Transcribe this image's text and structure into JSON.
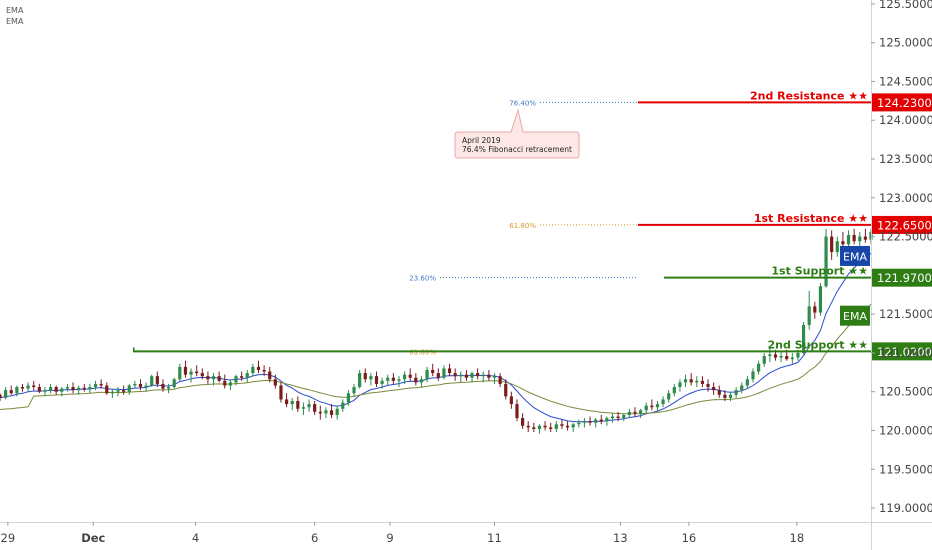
{
  "legend": [
    "EMA",
    "EMA"
  ],
  "colors": {
    "resistance": "#e40000",
    "support": "#2e7d14",
    "ema_badge": "#1646a8",
    "ema_fast": "#2a4ad0",
    "ema_slow": "#7a8a3a",
    "fib_blue": "#3d7bc4",
    "fib_orange": "#d89a2a",
    "bull": "#2e8b4a",
    "bear": "#7a1c1c"
  },
  "annotation": {
    "lines": [
      "April 2019",
      "76.4% Fibonacci retracement"
    ]
  },
  "chart_data": {
    "type": "candlestick",
    "y_axis": {
      "ylim": [
        118.82,
        125.55
      ],
      "ticks": [
        "125.5000",
        "125.0000",
        "124.5000",
        "124.0000",
        "123.5000",
        "123.0000",
        "122.5000",
        "121.5000",
        "121.0000",
        "120.5000",
        "120.0000",
        "119.5000",
        "119.0000"
      ]
    },
    "x_axis": {
      "ticks": [
        {
          "label": "29",
          "t": 0.7
        },
        {
          "label": "Dec",
          "t": 8.3
        },
        {
          "label": "4",
          "t": 17.4
        },
        {
          "label": "6",
          "t": 28.0
        },
        {
          "label": "9",
          "t": 34.7
        },
        {
          "label": "11",
          "t": 44.0
        },
        {
          "label": "13",
          "t": 55.2
        },
        {
          "label": "16",
          "t": 61.3
        },
        {
          "label": "18",
          "t": 70.9
        }
      ]
    },
    "levels": [
      {
        "label": "2nd Resistance ★★",
        "value": "124.2300",
        "price": 124.23,
        "kind": "resistance"
      },
      {
        "label": "1st Resistance ★★",
        "value": "122.6500",
        "price": 122.65,
        "kind": "resistance"
      },
      {
        "label": "1st Support ★★",
        "value": "121.9700",
        "price": 121.97,
        "kind": "support"
      },
      {
        "label": "2nd Support ★★",
        "value": "121.0200",
        "price": 121.02,
        "kind": "support"
      }
    ],
    "fib_levels": [
      {
        "label": "76.40%",
        "price": 124.23,
        "color": "blue"
      },
      {
        "label": "61.80%",
        "price": 122.65,
        "color": "orange"
      },
      {
        "label": "23.60%",
        "price": 121.97,
        "color": "blue"
      },
      {
        "label": "61.80%",
        "price": 121.02,
        "color": "orange"
      }
    ],
    "ema_badges": [
      {
        "label": "EMA",
        "price": 122.25
      },
      {
        "label": "EMA",
        "price": 121.48
      }
    ],
    "support_start_t": 11.9,
    "ohlc": [
      [
        120.46,
        120.48,
        120.38,
        120.42
      ],
      [
        120.42,
        120.56,
        120.4,
        120.52
      ],
      [
        120.52,
        120.58,
        120.46,
        120.48
      ],
      [
        120.48,
        120.58,
        120.44,
        120.56
      ],
      [
        120.56,
        120.6,
        120.5,
        120.54
      ],
      [
        120.54,
        120.62,
        120.5,
        120.58
      ],
      [
        120.58,
        120.64,
        120.52,
        120.56
      ],
      [
        120.56,
        120.6,
        120.48,
        120.5
      ],
      [
        120.5,
        120.56,
        120.44,
        120.52
      ],
      [
        120.52,
        120.6,
        120.48,
        120.56
      ],
      [
        120.56,
        120.58,
        120.46,
        120.5
      ],
      [
        120.5,
        120.56,
        120.44,
        120.54
      ],
      [
        120.54,
        120.6,
        120.5,
        120.56
      ],
      [
        120.56,
        120.62,
        120.48,
        120.52
      ],
      [
        120.52,
        120.58,
        120.46,
        120.55
      ],
      [
        120.55,
        120.6,
        120.5,
        120.53
      ],
      [
        120.53,
        120.6,
        120.48,
        120.56
      ],
      [
        120.56,
        120.64,
        120.52,
        120.6
      ],
      [
        120.6,
        120.66,
        120.54,
        120.58
      ],
      [
        120.58,
        120.62,
        120.46,
        120.48
      ],
      [
        120.48,
        120.54,
        120.42,
        120.5
      ],
      [
        120.5,
        120.56,
        120.44,
        120.52
      ],
      [
        120.52,
        120.58,
        120.46,
        120.5
      ],
      [
        120.5,
        120.6,
        120.46,
        120.58
      ],
      [
        120.58,
        120.64,
        120.54,
        120.6
      ],
      [
        120.6,
        120.66,
        120.52,
        120.56
      ],
      [
        120.56,
        120.62,
        120.5,
        120.58
      ],
      [
        120.58,
        120.72,
        120.56,
        120.7
      ],
      [
        120.7,
        120.76,
        120.56,
        120.6
      ],
      [
        120.6,
        120.66,
        120.5,
        120.54
      ],
      [
        120.54,
        120.6,
        120.48,
        120.56
      ],
      [
        120.56,
        120.68,
        120.54,
        120.66
      ],
      [
        120.66,
        120.86,
        120.64,
        120.82
      ],
      [
        120.82,
        120.9,
        120.68,
        120.72
      ],
      [
        120.72,
        120.8,
        120.62,
        120.76
      ],
      [
        120.76,
        120.84,
        120.7,
        120.74
      ],
      [
        120.74,
        120.8,
        120.66,
        120.7
      ],
      [
        120.7,
        120.76,
        120.6,
        120.66
      ],
      [
        120.66,
        120.74,
        120.58,
        120.7
      ],
      [
        120.7,
        120.76,
        120.62,
        120.64
      ],
      [
        120.64,
        120.72,
        120.54,
        120.58
      ],
      [
        120.58,
        120.66,
        120.52,
        120.62
      ],
      [
        120.62,
        120.72,
        120.58,
        120.7
      ],
      [
        120.7,
        120.76,
        120.64,
        120.68
      ],
      [
        120.68,
        120.78,
        120.62,
        120.74
      ],
      [
        120.74,
        120.86,
        120.7,
        120.82
      ],
      [
        120.82,
        120.9,
        120.74,
        120.78
      ],
      [
        120.78,
        120.84,
        120.7,
        120.76
      ],
      [
        120.76,
        120.82,
        120.62,
        120.66
      ],
      [
        120.66,
        120.72,
        120.54,
        120.58
      ],
      [
        120.58,
        120.62,
        120.36,
        120.4
      ],
      [
        120.4,
        120.48,
        120.3,
        120.34
      ],
      [
        120.34,
        120.42,
        120.26,
        120.38
      ],
      [
        120.38,
        120.44,
        120.24,
        120.28
      ],
      [
        120.28,
        120.36,
        120.2,
        120.3
      ],
      [
        120.3,
        120.4,
        120.24,
        120.34
      ],
      [
        120.34,
        120.38,
        120.2,
        120.24
      ],
      [
        120.24,
        120.32,
        120.14,
        120.22
      ],
      [
        120.22,
        120.3,
        120.16,
        120.26
      ],
      [
        120.26,
        120.34,
        120.16,
        120.2
      ],
      [
        120.2,
        120.32,
        120.14,
        120.28
      ],
      [
        120.28,
        120.4,
        120.24,
        120.36
      ],
      [
        120.36,
        120.52,
        120.32,
        120.48
      ],
      [
        120.48,
        120.6,
        120.44,
        120.56
      ],
      [
        120.56,
        120.78,
        120.54,
        120.74
      ],
      [
        120.74,
        120.8,
        120.62,
        120.66
      ],
      [
        120.66,
        120.74,
        120.58,
        120.7
      ],
      [
        120.7,
        120.76,
        120.56,
        120.6
      ],
      [
        120.6,
        120.68,
        120.54,
        120.64
      ],
      [
        120.64,
        120.72,
        120.58,
        120.68
      ],
      [
        120.68,
        120.74,
        120.6,
        120.64
      ],
      [
        120.64,
        120.7,
        120.56,
        120.66
      ],
      [
        120.66,
        120.76,
        120.6,
        120.72
      ],
      [
        120.72,
        120.8,
        120.64,
        120.68
      ],
      [
        120.68,
        120.74,
        120.58,
        120.62
      ],
      [
        120.62,
        120.7,
        120.56,
        120.66
      ],
      [
        120.66,
        120.82,
        120.62,
        120.78
      ],
      [
        120.78,
        120.86,
        120.7,
        120.74
      ],
      [
        120.74,
        120.8,
        120.64,
        120.68
      ],
      [
        120.68,
        120.84,
        120.66,
        120.8
      ],
      [
        120.8,
        120.86,
        120.7,
        120.74
      ],
      [
        120.74,
        120.8,
        120.64,
        120.7
      ],
      [
        120.7,
        120.76,
        120.62,
        120.72
      ],
      [
        120.72,
        120.78,
        120.64,
        120.68
      ],
      [
        120.68,
        120.76,
        120.62,
        120.74
      ],
      [
        120.74,
        120.8,
        120.66,
        120.7
      ],
      [
        120.7,
        120.76,
        120.62,
        120.72
      ],
      [
        120.72,
        120.78,
        120.64,
        120.68
      ],
      [
        120.68,
        120.74,
        120.6,
        120.7
      ],
      [
        120.7,
        120.74,
        120.56,
        120.6
      ],
      [
        120.6,
        120.66,
        120.4,
        120.44
      ],
      [
        120.44,
        120.5,
        120.28,
        120.34
      ],
      [
        120.34,
        120.4,
        120.12,
        120.16
      ],
      [
        120.16,
        120.22,
        120.02,
        120.06
      ],
      [
        120.06,
        120.12,
        119.98,
        120.04
      ],
      [
        120.04,
        120.1,
        119.98,
        120.02
      ],
      [
        120.02,
        120.08,
        119.96,
        120.06
      ],
      [
        120.06,
        120.12,
        120.0,
        120.04
      ],
      [
        120.04,
        120.1,
        119.98,
        120.02
      ],
      [
        120.02,
        120.12,
        119.98,
        120.08
      ],
      [
        120.08,
        120.14,
        120.02,
        120.06
      ],
      [
        120.06,
        120.12,
        120.0,
        120.04
      ],
      [
        120.04,
        120.1,
        119.98,
        120.08
      ],
      [
        120.08,
        120.14,
        120.04,
        120.1
      ],
      [
        120.1,
        120.16,
        120.04,
        120.12
      ],
      [
        120.12,
        120.18,
        120.06,
        120.1
      ],
      [
        120.1,
        120.16,
        120.04,
        120.14
      ],
      [
        120.14,
        120.2,
        120.08,
        120.12
      ],
      [
        120.12,
        120.18,
        120.06,
        120.16
      ],
      [
        120.16,
        120.22,
        120.1,
        120.18
      ],
      [
        120.18,
        120.24,
        120.12,
        120.16
      ],
      [
        120.16,
        120.22,
        120.12,
        120.2
      ],
      [
        120.2,
        120.28,
        120.16,
        120.24
      ],
      [
        120.24,
        120.3,
        120.18,
        120.22
      ],
      [
        120.22,
        120.28,
        120.16,
        120.26
      ],
      [
        120.26,
        120.36,
        120.22,
        120.32
      ],
      [
        120.32,
        120.4,
        120.26,
        120.3
      ],
      [
        120.3,
        120.38,
        120.24,
        120.34
      ],
      [
        120.34,
        120.44,
        120.3,
        120.4
      ],
      [
        120.4,
        120.52,
        120.36,
        120.48
      ],
      [
        120.48,
        120.6,
        120.44,
        120.56
      ],
      [
        120.56,
        120.66,
        120.5,
        120.62
      ],
      [
        120.62,
        120.72,
        120.56,
        120.66
      ],
      [
        120.66,
        120.74,
        120.58,
        120.62
      ],
      [
        120.62,
        120.7,
        120.56,
        120.64
      ],
      [
        120.64,
        120.7,
        120.56,
        120.6
      ],
      [
        120.6,
        120.66,
        120.5,
        120.56
      ],
      [
        120.56,
        120.62,
        120.46,
        120.52
      ],
      [
        120.52,
        120.58,
        120.42,
        120.46
      ],
      [
        120.46,
        120.52,
        120.38,
        120.42
      ],
      [
        120.42,
        120.5,
        120.38,
        120.46
      ],
      [
        120.46,
        120.56,
        120.42,
        120.52
      ],
      [
        120.52,
        120.62,
        120.48,
        120.58
      ],
      [
        120.58,
        120.7,
        120.54,
        120.66
      ],
      [
        120.66,
        120.8,
        120.62,
        120.76
      ],
      [
        120.76,
        120.9,
        120.72,
        120.86
      ],
      [
        120.86,
        121.0,
        120.82,
        120.96
      ],
      [
        120.96,
        121.06,
        120.88,
        120.98
      ],
      [
        120.98,
        121.04,
        120.9,
        120.94
      ],
      [
        120.94,
        121.02,
        120.88,
        120.96
      ],
      [
        120.96,
        121.04,
        120.9,
        120.92
      ],
      [
        120.92,
        121.0,
        120.86,
        120.94
      ],
      [
        120.94,
        121.04,
        120.9,
        121.0
      ],
      [
        121.0,
        121.4,
        120.98,
        121.36
      ],
      [
        121.36,
        121.8,
        121.3,
        121.6
      ],
      [
        121.6,
        121.66,
        121.44,
        121.52
      ],
      [
        121.52,
        121.9,
        121.48,
        121.86
      ],
      [
        121.86,
        122.6,
        121.84,
        122.5
      ],
      [
        122.5,
        122.58,
        122.2,
        122.3
      ],
      [
        122.3,
        122.5,
        122.24,
        122.44
      ],
      [
        122.44,
        122.56,
        122.36,
        122.4
      ],
      [
        122.4,
        122.58,
        122.34,
        122.52
      ],
      [
        122.52,
        122.6,
        122.4,
        122.44
      ],
      [
        122.44,
        122.56,
        122.38,
        122.5
      ],
      [
        122.5,
        122.6,
        122.42,
        122.46
      ],
      [
        122.46,
        122.6,
        122.4,
        122.56
      ]
    ]
  }
}
